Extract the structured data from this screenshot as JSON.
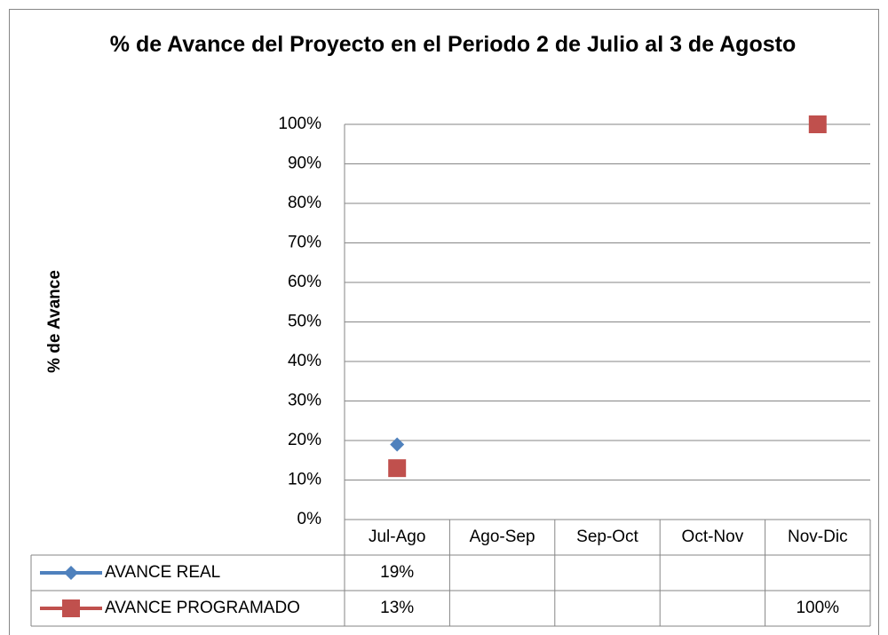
{
  "chart_data": {
    "type": "line",
    "title": "% de Avance del Proyecto en el Periodo 2 de Julio al 3 de Agosto",
    "y_label": "% de Avance",
    "categories": [
      "Jul-Ago",
      "Ago-Sep",
      "Sep-Oct",
      "Oct-Nov",
      "Nov-Dic"
    ],
    "series": [
      {
        "name": "AVANCE REAL",
        "color": "#4f81bd",
        "marker": "diamond",
        "values": [
          19,
          null,
          null,
          null,
          null
        ],
        "value_labels": [
          "19%",
          null,
          null,
          null,
          null
        ]
      },
      {
        "name": "AVANCE PROGRAMADO",
        "color": "#c0504d",
        "marker": "square",
        "values": [
          13,
          null,
          null,
          null,
          100
        ],
        "value_labels": [
          "13%",
          null,
          null,
          null,
          "100%"
        ]
      }
    ],
    "ylim": [
      0,
      100
    ],
    "yticks": [
      {
        "value": 0,
        "label": "0%"
      },
      {
        "value": 10,
        "label": "10%"
      },
      {
        "value": 20,
        "label": "20%"
      },
      {
        "value": 30,
        "label": "30%"
      },
      {
        "value": 40,
        "label": "40%"
      },
      {
        "value": 50,
        "label": "50%"
      },
      {
        "value": 60,
        "label": "60%"
      },
      {
        "value": 70,
        "label": "70%"
      },
      {
        "value": 80,
        "label": "80%"
      },
      {
        "value": 90,
        "label": "90%"
      },
      {
        "value": 100,
        "label": "100%"
      }
    ],
    "grid": true,
    "data_table": true
  }
}
